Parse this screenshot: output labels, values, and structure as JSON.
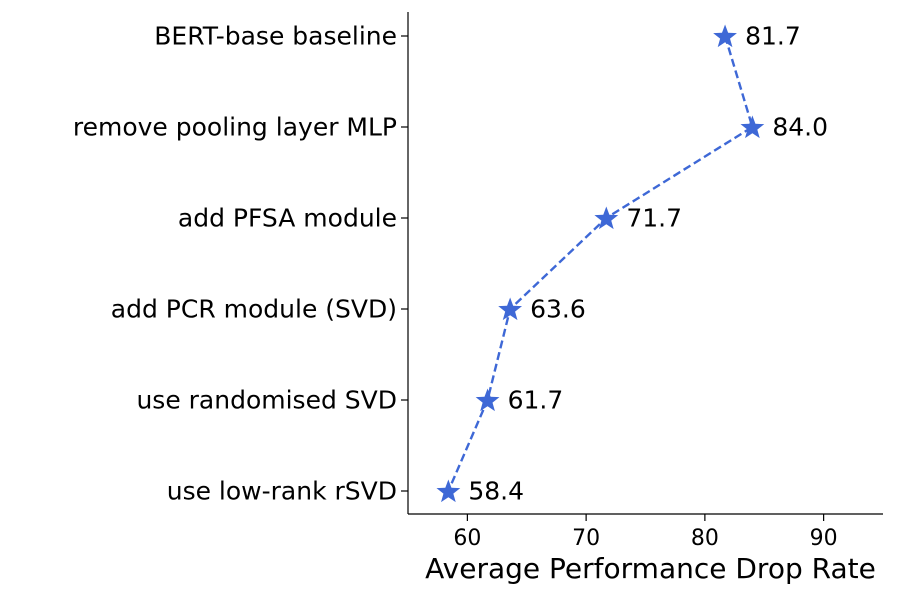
{
  "chart_data": {
    "type": "line",
    "title": "",
    "xlabel": "Average Performance Drop Rate",
    "ylabel": "",
    "categories": [
      "BERT-base baseline",
      "remove pooling layer MLP",
      "add PFSA module",
      "add PCR module (SVD)",
      "use randomised SVD",
      "use low-rank rSVD"
    ],
    "values": [
      81.7,
      84.0,
      71.7,
      63.6,
      61.7,
      58.4
    ],
    "value_labels": [
      "81.7",
      "84.0",
      "71.7",
      "63.6",
      "61.7",
      "58.4"
    ],
    "xlim": [
      55,
      95
    ],
    "xticks": [
      60,
      70,
      80,
      90
    ],
    "xtick_labels": [
      "60",
      "70",
      "80",
      "90"
    ],
    "marker": "star",
    "line_style": "dashed",
    "color": "#3E68D6",
    "grid": false,
    "legend": "none"
  }
}
